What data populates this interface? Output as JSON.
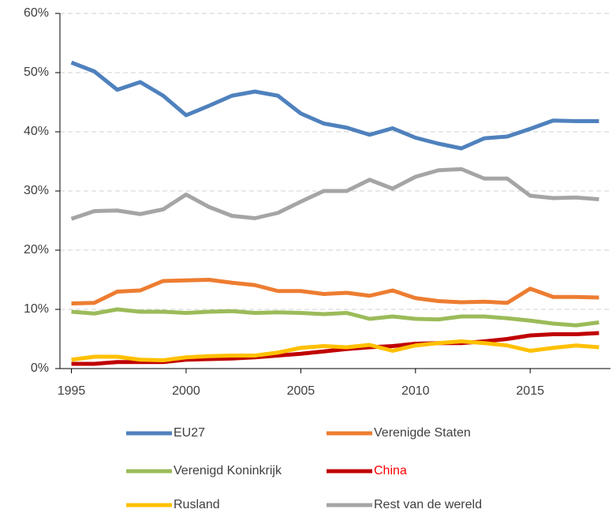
{
  "chart_data": {
    "type": "line",
    "x": [
      1995,
      1996,
      1997,
      1998,
      1999,
      2000,
      2001,
      2002,
      2003,
      2004,
      2005,
      2006,
      2007,
      2008,
      2009,
      2010,
      2011,
      2012,
      2013,
      2014,
      2015,
      2016,
      2017,
      2018
    ],
    "xlim": [
      1994.5,
      2018.5
    ],
    "xticks": [
      1995,
      2000,
      2005,
      2010,
      2015
    ],
    "ylim": [
      0,
      60
    ],
    "yticks": [
      {
        "value": 0,
        "label": "0%"
      },
      {
        "value": 10,
        "label": "10%"
      },
      {
        "value": 20,
        "label": "20%"
      },
      {
        "value": 30,
        "label": "30%"
      },
      {
        "value": 40,
        "label": "40%"
      },
      {
        "value": 50,
        "label": "50%"
      },
      {
        "value": 60,
        "label": "60%"
      }
    ],
    "grid": true,
    "legend": "bottom",
    "series": [
      {
        "name": "EU27",
        "color": "#4f81bd",
        "values": [
          51.7,
          50.2,
          47.1,
          48.4,
          46.1,
          42.8,
          44.4,
          46.1,
          46.8,
          46.1,
          43.1,
          41.4,
          40.7,
          39.5,
          40.6,
          39.0,
          38.0,
          37.2,
          38.9,
          39.2,
          40.5,
          41.9,
          41.8,
          41.8
        ]
      },
      {
        "name": "Verenigde Staten",
        "color": "#ed7d31",
        "values": [
          11.0,
          11.1,
          13.0,
          13.2,
          14.8,
          14.9,
          15.0,
          14.5,
          14.1,
          13.1,
          13.1,
          12.6,
          12.8,
          12.3,
          13.2,
          11.9,
          11.4,
          11.2,
          11.3,
          11.1,
          13.5,
          12.1,
          12.1,
          12.0
        ]
      },
      {
        "name": "Verenigd Koninkrijk",
        "color": "#9bbb59",
        "values": [
          9.6,
          9.3,
          10.0,
          9.6,
          9.6,
          9.4,
          9.6,
          9.7,
          9.4,
          9.5,
          9.4,
          9.2,
          9.4,
          8.4,
          8.8,
          8.4,
          8.3,
          8.8,
          8.8,
          8.5,
          8.1,
          7.6,
          7.3,
          7.8
        ]
      },
      {
        "name": "China",
        "color": "#c00000",
        "label_color": "#ff0000",
        "values": [
          0.8,
          0.8,
          1.1,
          1.1,
          1.1,
          1.5,
          1.6,
          1.7,
          1.9,
          2.2,
          2.5,
          2.9,
          3.3,
          3.6,
          3.8,
          4.2,
          4.3,
          4.3,
          4.6,
          5.0,
          5.6,
          5.8,
          5.8,
          6.0
        ]
      },
      {
        "name": "Rusland",
        "color": "#ffc000",
        "values": [
          1.5,
          2.0,
          2.0,
          1.5,
          1.4,
          1.9,
          2.1,
          2.2,
          2.2,
          2.7,
          3.5,
          3.8,
          3.6,
          4.0,
          3.0,
          3.9,
          4.3,
          4.6,
          4.3,
          3.9,
          3.0,
          3.5,
          3.9,
          3.6
        ]
      },
      {
        "name": "Rest van de wereld",
        "color": "#a5a5a5",
        "values": [
          25.3,
          26.6,
          26.7,
          26.1,
          26.9,
          29.4,
          27.3,
          25.8,
          25.4,
          26.3,
          28.2,
          30.0,
          30.0,
          31.9,
          30.4,
          32.4,
          33.5,
          33.7,
          32.1,
          32.1,
          29.2,
          28.8,
          28.9,
          28.6
        ]
      }
    ]
  }
}
